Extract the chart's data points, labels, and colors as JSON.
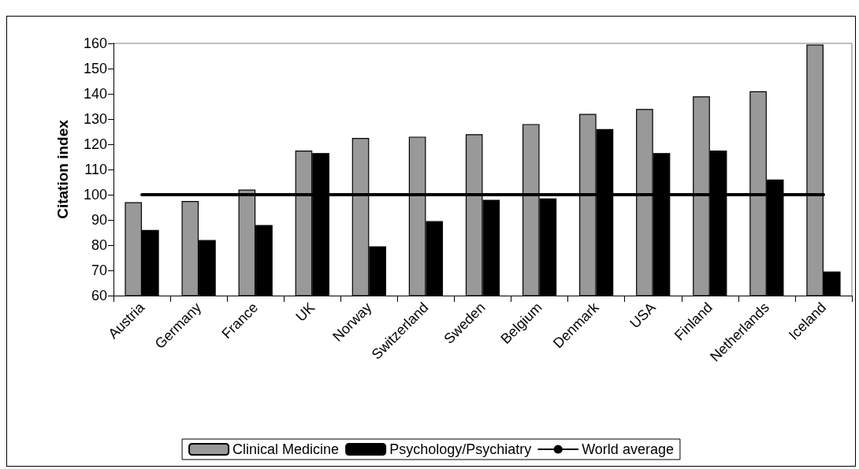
{
  "chart_data": {
    "type": "bar",
    "ylabel": "Citation index",
    "categories": [
      "Austria",
      "Germany",
      "France",
      "UK",
      "Norway",
      "Switzerland",
      "Sweden",
      "Belgium",
      "Denmark",
      "USA",
      "Finland",
      "Netherlands",
      "Iceland"
    ],
    "series": [
      {
        "name": "Clinical Medicine",
        "color": "#999999",
        "values": [
          97,
          97.5,
          102,
          117.5,
          122.5,
          123,
          124,
          128,
          132,
          134,
          139,
          141,
          159.5
        ]
      },
      {
        "name": "Psychology/Psychiatry",
        "color": "#000000",
        "values": [
          86,
          82,
          88,
          116.5,
          79.5,
          89.5,
          98,
          98.5,
          126,
          116.5,
          117.5,
          106,
          69.5
        ]
      },
      {
        "name": "World average",
        "type": "line",
        "color": "#000000",
        "marker": "none",
        "values": [
          100,
          100,
          100,
          100,
          100,
          100,
          100,
          100,
          100,
          100,
          100,
          100,
          100
        ]
      }
    ],
    "ylim": [
      60,
      160
    ],
    "yticks": [
      60,
      70,
      80,
      90,
      100,
      110,
      120,
      130,
      140,
      150,
      160
    ],
    "grid": false,
    "legend": "bottom"
  }
}
